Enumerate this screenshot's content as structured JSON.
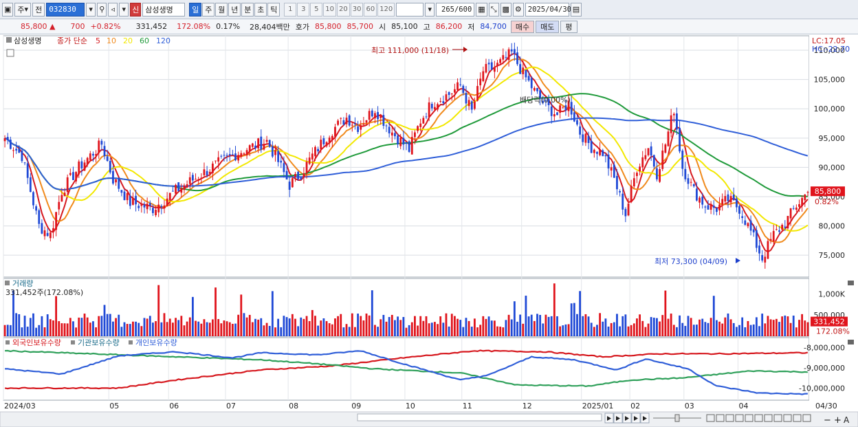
{
  "toolbar": {
    "type_select": "주",
    "prev_label": "전",
    "stock_code": "032830",
    "stock_name": "삼성생명",
    "new_badge": "신",
    "periods": [
      "일",
      "주",
      "월",
      "년",
      "분",
      "초",
      "틱"
    ],
    "active_period": "일",
    "numbers": [
      "1",
      "3",
      "5",
      "10",
      "20",
      "30",
      "60",
      "120"
    ],
    "count": "265",
    "count_max": "/600",
    "date": "2025/04/30"
  },
  "quote": {
    "price": "85,800",
    "change": "700",
    "change_pct": "+0.82%",
    "volume": "331,452",
    "volume_ratio": "172.08%",
    "turnover_rate": "0.17%",
    "amount": "28,404백만",
    "ask_label": "호가",
    "ask": "85,800",
    "bid": "85,700",
    "open_label": "시",
    "open": "85,100",
    "high_label": "고",
    "high": "86,200",
    "low_label": "저",
    "low": "84,700",
    "buy_label": "매수",
    "sell_label": "매도",
    "eval_label": "평"
  },
  "price_panel": {
    "stock_name": "삼성생명",
    "legend_prefix": "종가 단순",
    "ma_periods": [
      "5",
      "10",
      "20",
      "60",
      "120"
    ],
    "ma_colors": [
      "#d6181e",
      "#f08a1c",
      "#f2e800",
      "#1f9a3a",
      "#2f5ed8"
    ],
    "lc": "LC:17.05",
    "hc": "HC:-22.70",
    "high_note": "최고 111,000 (11/18)",
    "low_note": "최저 73,300 (04/09)",
    "dividend_note": "배당락(0.00%)",
    "price_tag": "85,800",
    "price_tag_pct": "0.82%"
  },
  "volume_panel": {
    "title": "거래량",
    "current": "331,452주(172.08%)",
    "tag": "331,452",
    "tag_pct": "172.08%"
  },
  "holding_panel": {
    "legends": [
      "외국인보유수량",
      "기관보유수량",
      "개인보유수량"
    ],
    "colors": [
      "#d6181e",
      "#2fa05a",
      "#2f5ed8"
    ]
  },
  "axis": {
    "months": [
      {
        "label": "2024/03",
        "idx": 0
      },
      {
        "label": "05",
        "idx": 37
      },
      {
        "label": "06",
        "idx": 58
      },
      {
        "label": "07",
        "idx": 78
      },
      {
        "label": "08",
        "idx": 100
      },
      {
        "label": "09",
        "idx": 122
      },
      {
        "label": "10",
        "idx": 141
      },
      {
        "label": "11",
        "idx": 161
      },
      {
        "label": "12",
        "idx": 182
      },
      {
        "label": "2025/01",
        "idx": 203
      },
      {
        "label": "02",
        "idx": 220
      },
      {
        "label": "03",
        "idx": 239
      },
      {
        "label": "04",
        "idx": 258
      }
    ],
    "end_date": "04/30",
    "price_ticks": [
      "110,000",
      "105,000",
      "100,000",
      "95,000",
      "90,000",
      "85,000",
      "80,000",
      "75,000"
    ],
    "volume_ticks": [
      "1,000K",
      "500,000"
    ],
    "holding_ticks": [
      "-8,000,000",
      "-9,000,000",
      "-10,000,000"
    ]
  },
  "chart_data": {
    "type": "candlestick",
    "title": "삼성생명",
    "price_range": [
      71500,
      112000
    ],
    "anchors": [
      [
        0,
        95000
      ],
      [
        6,
        92000
      ],
      [
        12,
        80000
      ],
      [
        16,
        78500
      ],
      [
        20,
        86000
      ],
      [
        26,
        90000
      ],
      [
        34,
        94000
      ],
      [
        38,
        88000
      ],
      [
        44,
        84000
      ],
      [
        52,
        83000
      ],
      [
        60,
        86000
      ],
      [
        68,
        88500
      ],
      [
        76,
        91000
      ],
      [
        84,
        93000
      ],
      [
        92,
        94500
      ],
      [
        96,
        91000
      ],
      [
        100,
        87000
      ],
      [
        104,
        89000
      ],
      [
        108,
        92000
      ],
      [
        114,
        96000
      ],
      [
        120,
        98500
      ],
      [
        124,
        97000
      ],
      [
        130,
        100000
      ],
      [
        136,
        96000
      ],
      [
        142,
        93000
      ],
      [
        146,
        98000
      ],
      [
        150,
        101000
      ],
      [
        156,
        102500
      ],
      [
        160,
        104000
      ],
      [
        164,
        99500
      ],
      [
        168,
        106500
      ],
      [
        172,
        107000
      ],
      [
        178,
        109500
      ],
      [
        182,
        106000
      ],
      [
        186,
        103000
      ],
      [
        190,
        100500
      ],
      [
        194,
        99000
      ],
      [
        198,
        101000
      ],
      [
        202,
        96000
      ],
      [
        206,
        93500
      ],
      [
        210,
        92500
      ],
      [
        214,
        88000
      ],
      [
        218,
        82000
      ],
      [
        222,
        90000
      ],
      [
        226,
        93500
      ],
      [
        229,
        89000
      ],
      [
        232,
        94000
      ],
      [
        235,
        100000
      ],
      [
        238,
        90000
      ],
      [
        242,
        86000
      ],
      [
        246,
        83500
      ],
      [
        250,
        83000
      ],
      [
        254,
        84500
      ],
      [
        258,
        83000
      ],
      [
        262,
        79000
      ],
      [
        266,
        74500
      ],
      [
        270,
        78500
      ],
      [
        274,
        80500
      ],
      [
        278,
        83500
      ],
      [
        282,
        85800
      ]
    ],
    "ma_periods": [
      5,
      10,
      20,
      60,
      120
    ],
    "holdings": {
      "foreign": {
        "name": "외국인보유수량",
        "anchors": [
          [
            0,
            -10.0
          ],
          [
            40,
            -10.0
          ],
          [
            60,
            -9.6
          ],
          [
            90,
            -9.1
          ],
          [
            115,
            -8.9
          ],
          [
            140,
            -8.5
          ],
          [
            165,
            -8.15
          ],
          [
            190,
            -8.2
          ],
          [
            210,
            -8.45
          ],
          [
            230,
            -8.3
          ],
          [
            250,
            -8.3
          ],
          [
            282,
            -8.25
          ]
        ]
      },
      "institution": {
        "name": "기관보유수량",
        "anchors": [
          [
            0,
            -8.15
          ],
          [
            30,
            -8.3
          ],
          [
            60,
            -8.45
          ],
          [
            90,
            -8.6
          ],
          [
            110,
            -8.8
          ],
          [
            130,
            -9.05
          ],
          [
            160,
            -9.25
          ],
          [
            180,
            -9.85
          ],
          [
            205,
            -9.9
          ],
          [
            220,
            -9.6
          ],
          [
            238,
            -9.5
          ],
          [
            262,
            -9.15
          ],
          [
            282,
            -9.2
          ]
        ]
      },
      "individual": {
        "name": "개인보유수량",
        "anchors": [
          [
            0,
            -9.05
          ],
          [
            20,
            -9.3
          ],
          [
            40,
            -8.4
          ],
          [
            60,
            -8.2
          ],
          [
            80,
            -8.5
          ],
          [
            90,
            -8.25
          ],
          [
            110,
            -8.35
          ],
          [
            125,
            -8.15
          ],
          [
            140,
            -8.8
          ],
          [
            160,
            -9.6
          ],
          [
            170,
            -9.35
          ],
          [
            185,
            -8.45
          ],
          [
            200,
            -8.6
          ],
          [
            215,
            -9.1
          ],
          [
            225,
            -8.55
          ],
          [
            240,
            -9.05
          ],
          [
            250,
            -9.9
          ],
          [
            265,
            -10.25
          ],
          [
            282,
            -10.3
          ]
        ]
      }
    }
  }
}
